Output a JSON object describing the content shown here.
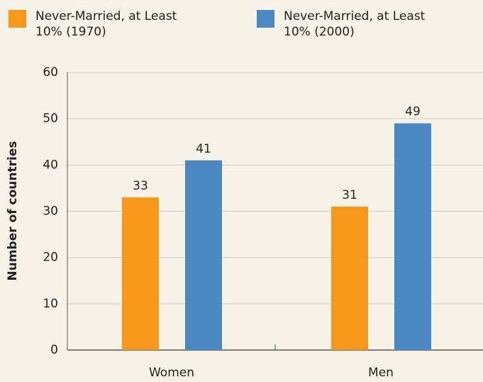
{
  "chart_data": {
    "type": "bar",
    "categories": [
      "Women",
      "Men"
    ],
    "series": [
      {
        "name": "Never-Married, at Least 10% (1970)",
        "color": "#f7981d",
        "values": [
          33,
          31
        ]
      },
      {
        "name": "Never-Married, at Least 10% (2000)",
        "color": "#4b87c1",
        "values": [
          41,
          49
        ]
      }
    ],
    "y_label": "Number of countries",
    "ylim": [
      0,
      60
    ],
    "yticks": [
      0,
      10,
      20,
      30,
      40,
      50,
      60
    ],
    "grid": true
  }
}
